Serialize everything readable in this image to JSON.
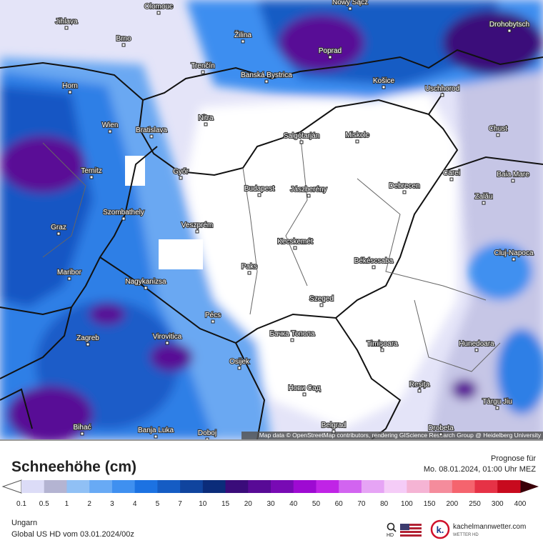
{
  "map": {
    "cities": [
      "Olomouc",
      "Nowy Sącz",
      "Jihlava",
      "Brno",
      "Žilina",
      "Drohobytsch",
      "Poprad",
      "Trenčín",
      "Banská Bystrica",
      "Košice",
      "Uschhorod",
      "Horn",
      "Wien",
      "Bratislava",
      "Nitra",
      "Salgótarján",
      "Miskolc",
      "Chust",
      "Ternitz",
      "Győr",
      "Budapest",
      "Jászberény",
      "Debrecen",
      "Carei",
      "Baia Mare",
      "Szombathely",
      "Zalău",
      "Graz",
      "Veszprém",
      "Kecskemét",
      "Cluj-Napoca",
      "Maribor",
      "Paks",
      "Békéscsaba",
      "Nagykanizsa",
      "Pécs",
      "Szeged",
      "Zagreb",
      "Virovitica",
      "Бачка Топола",
      "Timișoara",
      "Hunedoara",
      "Osijek",
      "Нови Сад",
      "Reșița",
      "Târgu Jiu",
      "Bihać",
      "Banja Luka",
      "Doboj",
      "Belgrad",
      "Drobeta"
    ],
    "attribution": "Map data © OpenStreetMap contributors, rendering GIScience Research Group @ Heidelberg University"
  },
  "legend": {
    "title": "Schneehöhe (cm)",
    "forecast_label": "Prognose für",
    "forecast_time": "Mo. 08.01.2024, 01:00 Uhr MEZ",
    "ticks": [
      0.1,
      0.5,
      1,
      2,
      3,
      4,
      5,
      7,
      10,
      15,
      20,
      30,
      40,
      50,
      60,
      70,
      80,
      100,
      150,
      200,
      250,
      300,
      400
    ],
    "colors": [
      "#dcdcf7",
      "#b4b4d2",
      "#90c0f5",
      "#68aaf5",
      "#3f90f0",
      "#1c72e2",
      "#155cc4",
      "#10449e",
      "#0b2c7a",
      "#3a0c7a",
      "#580a96",
      "#780ab4",
      "#9e0ad2",
      "#c024e6",
      "#d264f0",
      "#e6a4f5",
      "#f5ccf7",
      "#f5b4d4",
      "#f58c9c",
      "#f5646e",
      "#e63246",
      "#c80a1e"
    ],
    "region": "Ungarn",
    "model_run": "Global US HD vom  03.01.2024/00z",
    "brand": "kachelmannwetter.com",
    "brand_sub": "WETTER HD",
    "search_label": "HD"
  }
}
